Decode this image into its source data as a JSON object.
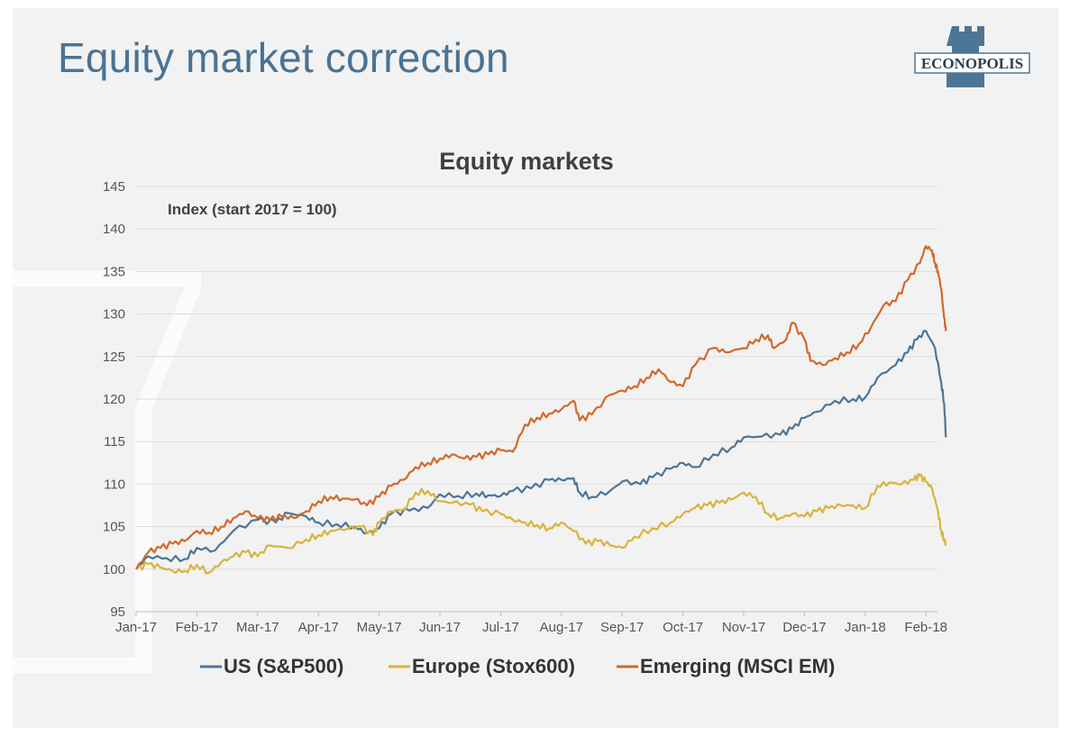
{
  "slide": {
    "title": "Equity market correction",
    "logo_text": "ECONOPOLIS"
  },
  "colors": {
    "title": "#4a7394",
    "us": "#4d7596",
    "europe": "#d9b43a",
    "emerging": "#d2692a",
    "background": "#f2f2f2"
  },
  "chart_data": {
    "type": "line",
    "title": "Equity markets",
    "annotation": "Index (start 2017 = 100)",
    "ylim": [
      95,
      145
    ],
    "yticks": [
      95,
      100,
      105,
      110,
      115,
      120,
      125,
      130,
      135,
      140,
      145
    ],
    "xlim": [
      0,
      13.3
    ],
    "xticks": [
      {
        "pos": 0,
        "label": "Jan-17"
      },
      {
        "pos": 1,
        "label": "Feb-17"
      },
      {
        "pos": 2,
        "label": "Mar-17"
      },
      {
        "pos": 3,
        "label": "Apr-17"
      },
      {
        "pos": 4,
        "label": "May-17"
      },
      {
        "pos": 5,
        "label": "Jun-17"
      },
      {
        "pos": 6,
        "label": "Jul-17"
      },
      {
        "pos": 7,
        "label": "Aug-17"
      },
      {
        "pos": 8,
        "label": "Sep-17"
      },
      {
        "pos": 9,
        "label": "Oct-17"
      },
      {
        "pos": 10,
        "label": "Nov-17"
      },
      {
        "pos": 11,
        "label": "Dec-17"
      },
      {
        "pos": 12,
        "label": "Jan-18"
      },
      {
        "pos": 13,
        "label": "Feb-18"
      }
    ],
    "grid": true,
    "legend_position": "bottom",
    "series": [
      {
        "name": "US (S&P500)",
        "color": "#4d7596",
        "points": [
          [
            0,
            100
          ],
          [
            0.2,
            101.5
          ],
          [
            0.5,
            101.3
          ],
          [
            0.8,
            101.2
          ],
          [
            1.0,
            102.5
          ],
          [
            1.3,
            102.2
          ],
          [
            1.6,
            104.5
          ],
          [
            2.0,
            105.8
          ],
          [
            2.3,
            105.5
          ],
          [
            2.5,
            106.6
          ],
          [
            2.8,
            106.2
          ],
          [
            3.0,
            105.5
          ],
          [
            3.3,
            105.3
          ],
          [
            3.6,
            105.0
          ],
          [
            3.8,
            104.2
          ],
          [
            4.0,
            104.8
          ],
          [
            4.2,
            106.5
          ],
          [
            4.5,
            106.9
          ],
          [
            4.8,
            107.2
          ],
          [
            5.0,
            108.8
          ],
          [
            5.3,
            108.6
          ],
          [
            5.6,
            108.9
          ],
          [
            5.8,
            108.7
          ],
          [
            6.0,
            108.6
          ],
          [
            6.2,
            109.2
          ],
          [
            6.5,
            109.5
          ],
          [
            6.8,
            110.5
          ],
          [
            7.0,
            110.5
          ],
          [
            7.2,
            110.7
          ],
          [
            7.3,
            109.0
          ],
          [
            7.5,
            108.5
          ],
          [
            7.8,
            109.2
          ],
          [
            8.0,
            110.3
          ],
          [
            8.3,
            110.0
          ],
          [
            8.5,
            110.8
          ],
          [
            8.8,
            111.8
          ],
          [
            9.0,
            112.5
          ],
          [
            9.2,
            112.0
          ],
          [
            9.5,
            113.5
          ],
          [
            9.8,
            114.3
          ],
          [
            10.0,
            115.5
          ],
          [
            10.3,
            115.6
          ],
          [
            10.6,
            115.8
          ],
          [
            10.8,
            116.5
          ],
          [
            11.0,
            117.8
          ],
          [
            11.2,
            118.5
          ],
          [
            11.5,
            119.8
          ],
          [
            11.8,
            120.0
          ],
          [
            12.0,
            120.2
          ],
          [
            12.2,
            122.5
          ],
          [
            12.5,
            124.0
          ],
          [
            12.7,
            125.5
          ],
          [
            12.85,
            127.0
          ],
          [
            13.0,
            128.0
          ],
          [
            13.15,
            126.0
          ],
          [
            13.25,
            122.0
          ],
          [
            13.3,
            119.5
          ],
          [
            13.33,
            115.5
          ]
        ]
      },
      {
        "name": "Europe (Stox600)",
        "color": "#d9b43a",
        "points": [
          [
            0,
            100
          ],
          [
            0.2,
            100.6
          ],
          [
            0.4,
            100.2
          ],
          [
            0.6,
            99.8
          ],
          [
            0.8,
            99.8
          ],
          [
            1.0,
            100.5
          ],
          [
            1.2,
            99.6
          ],
          [
            1.4,
            100.8
          ],
          [
            1.6,
            101.5
          ],
          [
            1.8,
            102.0
          ],
          [
            2.0,
            101.5
          ],
          [
            2.2,
            102.8
          ],
          [
            2.5,
            102.5
          ],
          [
            2.8,
            103.5
          ],
          [
            3.0,
            104.0
          ],
          [
            3.2,
            104.5
          ],
          [
            3.5,
            104.8
          ],
          [
            3.7,
            105.0
          ],
          [
            3.9,
            104.0
          ],
          [
            4.0,
            105.5
          ],
          [
            4.2,
            106.8
          ],
          [
            4.4,
            107.0
          ],
          [
            4.6,
            109.0
          ],
          [
            4.8,
            109.2
          ],
          [
            5.0,
            108.0
          ],
          [
            5.2,
            107.8
          ],
          [
            5.5,
            107.6
          ],
          [
            5.7,
            106.8
          ],
          [
            6.0,
            106.5
          ],
          [
            6.2,
            105.8
          ],
          [
            6.4,
            105.5
          ],
          [
            6.6,
            105.2
          ],
          [
            6.8,
            104.8
          ],
          [
            7.0,
            105.5
          ],
          [
            7.2,
            104.5
          ],
          [
            7.4,
            103.0
          ],
          [
            7.6,
            103.3
          ],
          [
            7.8,
            102.8
          ],
          [
            8.0,
            102.5
          ],
          [
            8.2,
            103.8
          ],
          [
            8.5,
            104.8
          ],
          [
            8.8,
            105.5
          ],
          [
            9.0,
            106.5
          ],
          [
            9.2,
            107.2
          ],
          [
            9.4,
            107.5
          ],
          [
            9.6,
            107.8
          ],
          [
            9.8,
            108.2
          ],
          [
            10.0,
            109.0
          ],
          [
            10.2,
            108.5
          ],
          [
            10.4,
            106.5
          ],
          [
            10.6,
            106.0
          ],
          [
            10.8,
            106.5
          ],
          [
            11.0,
            106.2
          ],
          [
            11.2,
            106.8
          ],
          [
            11.4,
            107.2
          ],
          [
            11.6,
            107.5
          ],
          [
            11.8,
            107.5
          ],
          [
            12.0,
            107.2
          ],
          [
            12.2,
            109.8
          ],
          [
            12.4,
            110.2
          ],
          [
            12.6,
            110.0
          ],
          [
            12.8,
            110.5
          ],
          [
            12.9,
            111.0
          ],
          [
            13.0,
            110.3
          ],
          [
            13.1,
            109.5
          ],
          [
            13.2,
            106.8
          ],
          [
            13.25,
            104.5
          ],
          [
            13.3,
            103.5
          ],
          [
            13.33,
            103.0
          ]
        ]
      },
      {
        "name": "Emerging (MSCI EM)",
        "color": "#d2692a",
        "points": [
          [
            0,
            100
          ],
          [
            0.2,
            102.0
          ],
          [
            0.4,
            102.5
          ],
          [
            0.6,
            103.0
          ],
          [
            0.8,
            103.3
          ],
          [
            1.0,
            104.5
          ],
          [
            1.2,
            104.3
          ],
          [
            1.4,
            105.0
          ],
          [
            1.6,
            106.0
          ],
          [
            1.8,
            106.8
          ],
          [
            2.0,
            106.0
          ],
          [
            2.2,
            105.8
          ],
          [
            2.4,
            106.2
          ],
          [
            2.6,
            106.0
          ],
          [
            2.8,
            106.8
          ],
          [
            3.0,
            108.0
          ],
          [
            3.2,
            108.5
          ],
          [
            3.4,
            108.3
          ],
          [
            3.6,
            108.2
          ],
          [
            3.8,
            107.5
          ],
          [
            4.0,
            108.5
          ],
          [
            4.2,
            109.8
          ],
          [
            4.4,
            110.5
          ],
          [
            4.6,
            112.0
          ],
          [
            4.8,
            112.5
          ],
          [
            5.0,
            113.0
          ],
          [
            5.2,
            113.5
          ],
          [
            5.4,
            113.0
          ],
          [
            5.6,
            113.2
          ],
          [
            5.8,
            113.5
          ],
          [
            6.0,
            114.0
          ],
          [
            6.2,
            113.8
          ],
          [
            6.4,
            117.0
          ],
          [
            6.6,
            117.8
          ],
          [
            6.8,
            118.3
          ],
          [
            7.0,
            118.8
          ],
          [
            7.2,
            119.8
          ],
          [
            7.3,
            117.5
          ],
          [
            7.5,
            118.2
          ],
          [
            7.8,
            120.5
          ],
          [
            8.0,
            121.0
          ],
          [
            8.2,
            121.5
          ],
          [
            8.4,
            122.5
          ],
          [
            8.6,
            123.5
          ],
          [
            8.8,
            122.0
          ],
          [
            9.0,
            121.5
          ],
          [
            9.2,
            124.0
          ],
          [
            9.5,
            126.0
          ],
          [
            9.7,
            125.5
          ],
          [
            10.0,
            126.0
          ],
          [
            10.2,
            127.0
          ],
          [
            10.4,
            127.5
          ],
          [
            10.5,
            126.0
          ],
          [
            10.7,
            127.0
          ],
          [
            10.8,
            129.0
          ],
          [
            11.0,
            127.0
          ],
          [
            11.1,
            124.5
          ],
          [
            11.3,
            124.0
          ],
          [
            11.5,
            124.8
          ],
          [
            11.7,
            125.5
          ],
          [
            11.9,
            126.5
          ],
          [
            12.1,
            128.5
          ],
          [
            12.3,
            131.0
          ],
          [
            12.5,
            131.5
          ],
          [
            12.7,
            134.0
          ],
          [
            12.9,
            136.0
          ],
          [
            13.0,
            138.0
          ],
          [
            13.1,
            137.5
          ],
          [
            13.15,
            136.0
          ],
          [
            13.2,
            135.0
          ],
          [
            13.25,
            133.0
          ],
          [
            13.3,
            129.5
          ],
          [
            13.33,
            128.0
          ]
        ]
      }
    ]
  }
}
